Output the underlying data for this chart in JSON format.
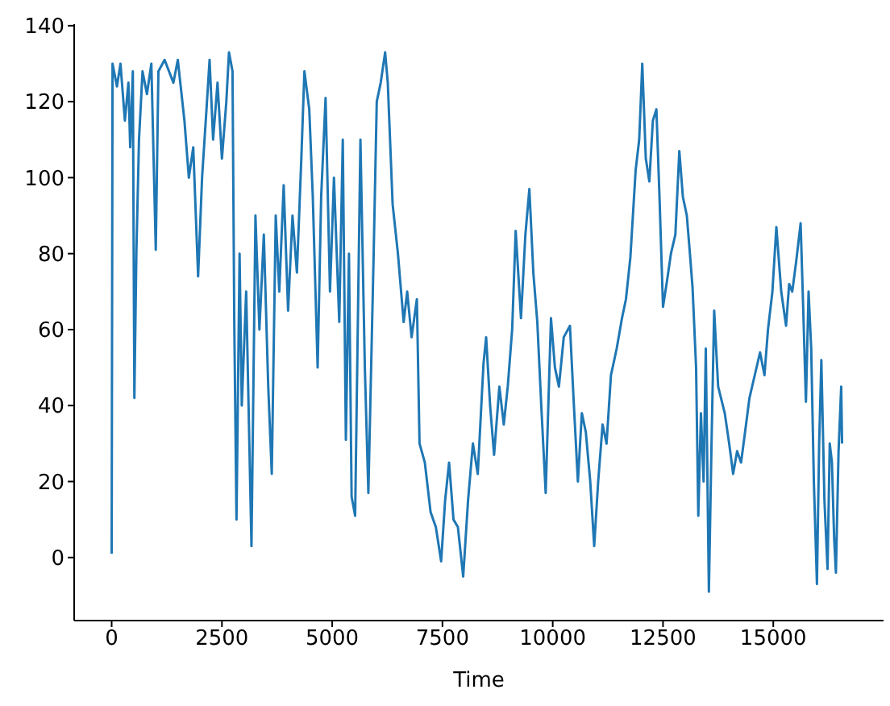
{
  "chart_data": {
    "type": "line",
    "xlabel": "Time",
    "color": "#1f77b4",
    "x": [
      0,
      20,
      120,
      200,
      300,
      380,
      420,
      480,
      515,
      560,
      620,
      700,
      800,
      900,
      1000,
      1060,
      1200,
      1400,
      1500,
      1650,
      1750,
      1850,
      1960,
      2050,
      2150,
      2220,
      2300,
      2400,
      2500,
      2600,
      2660,
      2740,
      2780,
      2830,
      2900,
      2950,
      3050,
      3170,
      3260,
      3350,
      3450,
      3550,
      3630,
      3720,
      3800,
      3900,
      4000,
      4100,
      4200,
      4300,
      4370,
      4480,
      4560,
      4670,
      4750,
      4850,
      4950,
      5040,
      5160,
      5240,
      5310,
      5380,
      5440,
      5520,
      5640,
      5740,
      5820,
      5940,
      6010,
      6100,
      6200,
      6260,
      6370,
      6490,
      6620,
      6700,
      6800,
      6920,
      6980,
      7100,
      7230,
      7350,
      7470,
      7560,
      7650,
      7750,
      7850,
      7970,
      8080,
      8190,
      8300,
      8430,
      8490,
      8580,
      8670,
      8790,
      8890,
      8980,
      9080,
      9160,
      9280,
      9380,
      9470,
      9560,
      9650,
      9740,
      9840,
      9960,
      10050,
      10140,
      10250,
      10390,
      10480,
      10570,
      10660,
      10750,
      10850,
      10940,
      11030,
      11130,
      11220,
      11320,
      11450,
      11570,
      11660,
      11760,
      11880,
      11960,
      12030,
      12110,
      12190,
      12270,
      12350,
      12420,
      12500,
      12580,
      12680,
      12780,
      12870,
      12950,
      13040,
      13110,
      13170,
      13250,
      13300,
      13360,
      13420,
      13470,
      13540,
      13600,
      13660,
      13750,
      13900,
      14000,
      14090,
      14180,
      14270,
      14360,
      14460,
      14580,
      14700,
      14800,
      14880,
      14980,
      15070,
      15180,
      15290,
      15360,
      15430,
      15520,
      15620,
      15680,
      15740,
      15800,
      15860,
      15920,
      15990,
      16040,
      16090,
      16160,
      16230,
      16280,
      16330,
      16380,
      16420,
      16480,
      16540,
      16560
    ],
    "values": [
      1,
      130,
      124,
      130,
      115,
      125,
      108,
      128,
      42,
      80,
      110,
      128,
      122,
      130,
      81,
      128,
      131,
      125,
      131,
      115,
      100,
      108,
      74,
      100,
      118,
      131,
      110,
      125,
      105,
      120,
      133,
      128,
      62,
      10,
      80,
      40,
      70,
      3,
      90,
      60,
      85,
      45,
      22,
      90,
      70,
      98,
      65,
      90,
      75,
      105,
      128,
      118,
      95,
      50,
      95,
      121,
      70,
      100,
      62,
      110,
      31,
      80,
      16,
      11,
      110,
      50,
      17,
      80,
      120,
      125,
      133,
      125,
      93,
      80,
      62,
      70,
      58,
      68,
      30,
      25,
      12,
      8,
      -1,
      15,
      25,
      10,
      8,
      -5,
      15,
      30,
      22,
      51,
      58,
      40,
      27,
      45,
      35,
      45,
      60,
      86,
      63,
      85,
      97,
      75,
      62,
      40,
      17,
      63,
      50,
      45,
      58,
      61,
      40,
      20,
      38,
      33,
      20,
      3,
      20,
      35,
      30,
      48,
      55,
      63,
      68,
      79,
      102,
      110,
      130,
      105,
      99,
      115,
      118,
      95,
      66,
      72,
      80,
      85,
      107,
      95,
      90,
      80,
      71,
      50,
      11,
      38,
      20,
      55,
      -9,
      30,
      65,
      45,
      38,
      30,
      22,
      28,
      25,
      33,
      42,
      48,
      54,
      48,
      60,
      70,
      87,
      70,
      61,
      72,
      70,
      78,
      88,
      65,
      41,
      70,
      55,
      20,
      -7,
      30,
      52,
      15,
      -3,
      30,
      25,
      5,
      -4,
      28,
      45,
      30
    ],
    "xlim": [
      -850,
      17500
    ],
    "ylim": [
      -16.6,
      140.4
    ],
    "xticks": [
      0,
      2500,
      5000,
      7500,
      10000,
      12500,
      15000
    ],
    "yticks": [
      0,
      20,
      40,
      60,
      80,
      100,
      120,
      140
    ]
  }
}
